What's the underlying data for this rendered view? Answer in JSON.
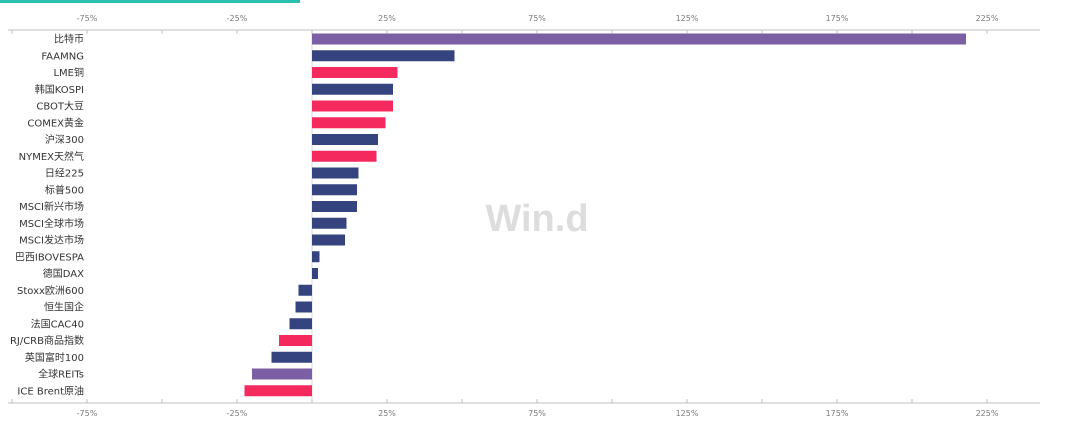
{
  "watermark": "Win.d",
  "colors": {
    "accent": "#2bbfb0",
    "navy": "#35437e",
    "pink": "#f42a5f",
    "purple": "#7c5ea4",
    "axis": "#bfbfbf"
  },
  "chart_data": {
    "type": "bar",
    "orientation": "horizontal",
    "title": "",
    "xlabel": "",
    "ylabel": "",
    "xlim": [
      -100,
      250
    ],
    "grid": false,
    "legend": "none",
    "x_ticks": [
      "-75%",
      "-25%",
      "25%",
      "75%",
      "125%",
      "175%",
      "225%"
    ],
    "x_tick_values": [
      -75,
      -25,
      25,
      75,
      125,
      175,
      225
    ],
    "categories": [
      "比特币",
      "FAAMNG",
      "LME铜",
      "韩国KOSPI",
      "CBOT大豆",
      "COMEX黄金",
      "沪深300",
      "NYMEX天然气",
      "日经225",
      "标普500",
      "MSCI新兴市场",
      "MSCI全球市场",
      "MSCI发达市场",
      "巴西IBOVESPA",
      "德国DAX",
      "Stoxx欧洲600",
      "恒生国企",
      "法国CAC40",
      "RJ/CRB商品指数",
      "英国富时100",
      "全球REITs",
      "ICE Brent原油"
    ],
    "values": [
      218,
      47.5,
      28.5,
      27,
      27,
      24.5,
      22,
      21.5,
      15.5,
      15,
      15,
      11.5,
      11,
      2.5,
      2,
      -4.5,
      -5.5,
      -7.5,
      -11,
      -13.5,
      -20,
      -22.5
    ],
    "bar_colors": [
      "purple",
      "navy",
      "pink",
      "navy",
      "pink",
      "pink",
      "navy",
      "pink",
      "navy",
      "navy",
      "navy",
      "navy",
      "navy",
      "navy",
      "navy",
      "navy",
      "navy",
      "navy",
      "pink",
      "navy",
      "purple",
      "pink"
    ]
  }
}
